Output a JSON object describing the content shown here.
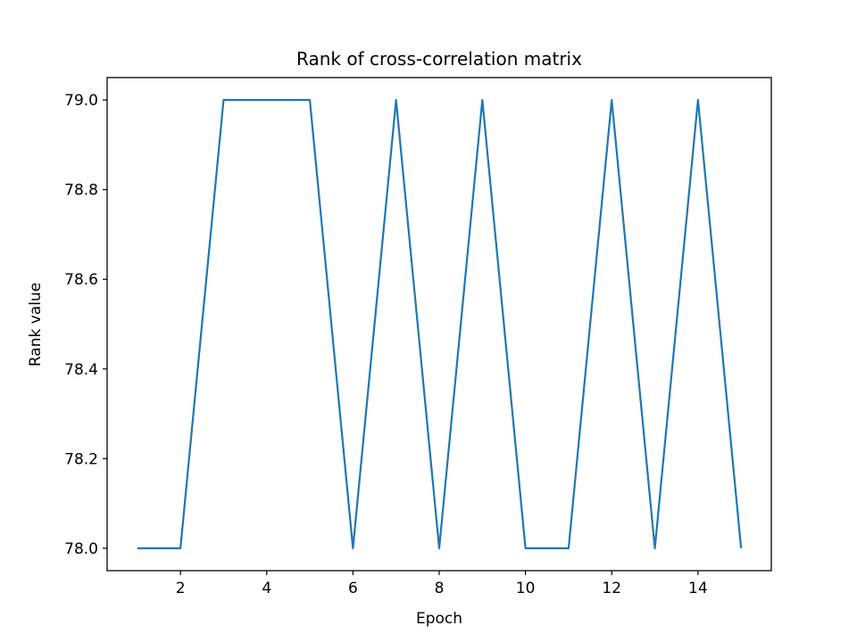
{
  "chart_data": {
    "type": "line",
    "title": "Rank of cross-correlation matrix",
    "xlabel": "Epoch",
    "ylabel": "Rank value",
    "xlim": [
      0.3,
      15.7
    ],
    "ylim": [
      77.95,
      79.05
    ],
    "x_ticks": [
      2,
      4,
      6,
      8,
      10,
      12,
      14
    ],
    "y_ticks": [
      78.0,
      78.2,
      78.4,
      78.6,
      78.8,
      79.0
    ],
    "y_tick_labels": [
      "78.0",
      "78.2",
      "78.4",
      "78.6",
      "78.8",
      "79.0"
    ],
    "grid": false,
    "series": [
      {
        "color": "#1f77b4",
        "x": [
          1,
          2,
          3,
          4,
          5,
          6,
          7,
          8,
          9,
          10,
          11,
          12,
          13,
          14,
          15
        ],
        "y": [
          78,
          78,
          79,
          79,
          79,
          78,
          79,
          78,
          79,
          78,
          78,
          79,
          78,
          79,
          78
        ]
      }
    ]
  }
}
